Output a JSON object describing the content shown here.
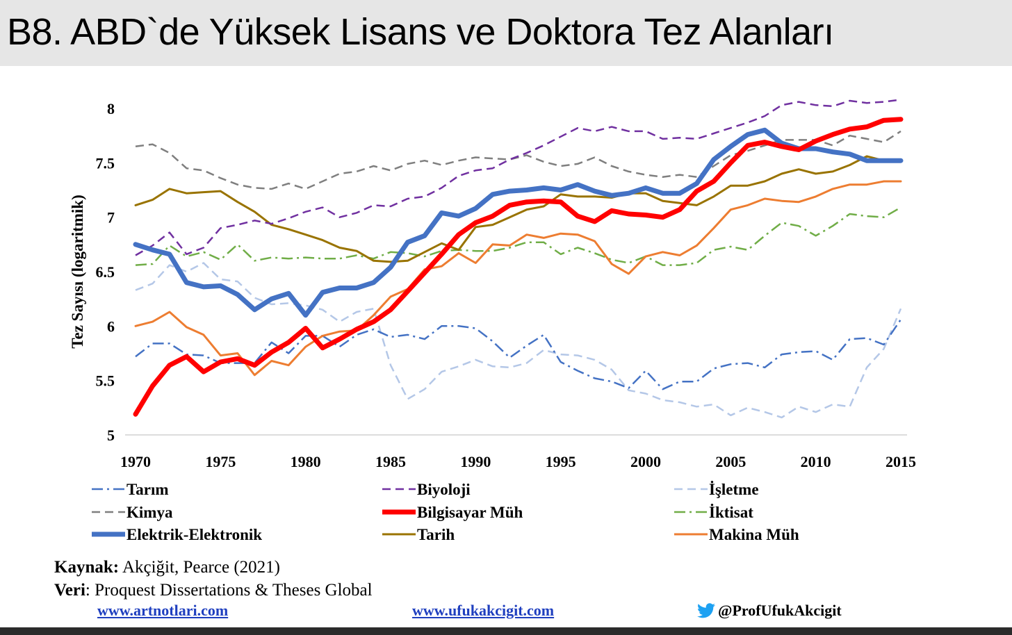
{
  "header": {
    "title": "B8. ABD`de Yüksek Lisans ve Doktora Tez Alanları"
  },
  "footer": {
    "source_label": "Kaynak:",
    "source_text": " Akçiğit, Pearce (2021)",
    "data_label": "Veri",
    "data_text": ": Proquest Dissertations & Theses Global",
    "link1": "www.artnotlari.com",
    "link2": "www.ufukakcigit.com",
    "twitter_handle": "@ProfUfukAkcigit",
    "twitter_icon": "twitter-bird-icon",
    "twitter_color": "#1da1f2"
  },
  "chart_data": {
    "type": "line",
    "ylabel": "Tez Sayısı (logaritmik)",
    "xlim": [
      1970,
      2015
    ],
    "ylim": [
      5,
      8
    ],
    "x_ticks": [
      1970,
      1975,
      1980,
      1985,
      1990,
      1995,
      2000,
      2005,
      2010,
      2015
    ],
    "x_tick_labels": [
      "1970",
      "1975",
      "1980",
      "1985",
      "1990",
      "1995",
      "2000",
      "2005",
      "2010",
      "2015"
    ],
    "y_ticks": [
      5,
      5.5,
      6,
      6.5,
      7,
      7.5,
      8
    ],
    "y_tick_labels": [
      "5",
      "5.5",
      "6",
      "6.5",
      "7",
      "7.5",
      "8"
    ],
    "grid": false,
    "legend": "bottom",
    "x": [
      1970,
      1971,
      1972,
      1973,
      1974,
      1975,
      1976,
      1977,
      1978,
      1979,
      1980,
      1981,
      1982,
      1983,
      1984,
      1985,
      1986,
      1987,
      1988,
      1989,
      1990,
      1991,
      1992,
      1993,
      1994,
      1995,
      1996,
      1997,
      1998,
      1999,
      2000,
      2001,
      2002,
      2003,
      2004,
      2005,
      2006,
      2007,
      2008,
      2009,
      2010,
      2011,
      2012,
      2013,
      2014,
      2015
    ],
    "series": [
      {
        "name": "Tarım",
        "color": "#4472c4",
        "dash": "dashdot",
        "width": 2.5,
        "values": [
          5.72,
          5.84,
          5.84,
          5.74,
          5.73,
          5.66,
          5.66,
          5.66,
          5.85,
          5.75,
          5.91,
          5.91,
          5.81,
          5.92,
          5.97,
          5.9,
          5.92,
          5.88,
          6.0,
          6.0,
          5.98,
          5.86,
          5.71,
          5.82,
          5.92,
          5.67,
          5.59,
          5.52,
          5.49,
          5.43,
          5.59,
          5.42,
          5.49,
          5.49,
          5.61,
          5.65,
          5.66,
          5.62,
          5.74,
          5.76,
          5.77,
          5.69,
          5.88,
          5.89,
          5.83,
          6.06
        ]
      },
      {
        "name": "Biyoloji",
        "color": "#7030a0",
        "dash": "dash",
        "width": 2.5,
        "values": [
          6.65,
          6.74,
          6.86,
          6.66,
          6.72,
          6.9,
          6.93,
          6.97,
          6.94,
          6.99,
          7.05,
          7.09,
          7.0,
          7.04,
          7.11,
          7.1,
          7.17,
          7.19,
          7.27,
          7.38,
          7.43,
          7.45,
          7.53,
          7.59,
          7.66,
          7.74,
          7.82,
          7.79,
          7.83,
          7.79,
          7.79,
          7.72,
          7.73,
          7.72,
          7.77,
          7.82,
          7.87,
          7.93,
          8.03,
          8.06,
          8.03,
          8.02,
          8.07,
          8.05,
          8.06,
          8.08
        ]
      },
      {
        "name": "İşletme",
        "color": "#b4c7e7",
        "dash": "dash",
        "width": 2.5,
        "values": [
          6.33,
          6.39,
          6.56,
          6.5,
          6.58,
          6.43,
          6.41,
          6.26,
          6.2,
          6.21,
          6.19,
          6.15,
          6.04,
          6.13,
          6.16,
          5.64,
          5.33,
          5.42,
          5.58,
          5.63,
          5.69,
          5.63,
          5.62,
          5.66,
          5.78,
          5.74,
          5.73,
          5.69,
          5.6,
          5.41,
          5.38,
          5.32,
          5.3,
          5.26,
          5.28,
          5.18,
          5.25,
          5.21,
          5.16,
          5.26,
          5.21,
          5.28,
          5.26,
          5.62,
          5.79,
          6.16
        ]
      },
      {
        "name": "Kimya",
        "color": "#7f7f7f",
        "dash": "dash",
        "width": 2.5,
        "values": [
          7.65,
          7.67,
          7.59,
          7.45,
          7.43,
          7.36,
          7.3,
          7.27,
          7.26,
          7.31,
          7.26,
          7.33,
          7.4,
          7.42,
          7.47,
          7.43,
          7.49,
          7.52,
          7.48,
          7.52,
          7.55,
          7.54,
          7.53,
          7.57,
          7.51,
          7.47,
          7.49,
          7.55,
          7.47,
          7.42,
          7.39,
          7.37,
          7.39,
          7.37,
          7.47,
          7.57,
          7.61,
          7.66,
          7.71,
          7.71,
          7.71,
          7.66,
          7.75,
          7.72,
          7.69,
          7.79
        ]
      },
      {
        "name": "Bilgisayar Müh",
        "color": "#ff0000",
        "dash": "solid",
        "width": 7,
        "values": [
          5.19,
          5.45,
          5.64,
          5.72,
          5.58,
          5.67,
          5.7,
          5.64,
          5.76,
          5.85,
          5.98,
          5.8,
          5.88,
          5.97,
          6.04,
          6.15,
          6.32,
          6.49,
          6.66,
          6.84,
          6.95,
          7.01,
          7.11,
          7.14,
          7.15,
          7.14,
          7.01,
          6.96,
          7.06,
          7.03,
          7.02,
          7.0,
          7.07,
          7.24,
          7.33,
          7.5,
          7.66,
          7.69,
          7.65,
          7.62,
          7.7,
          7.76,
          7.81,
          7.83,
          7.89,
          7.9
        ]
      },
      {
        "name": "İktisat",
        "color": "#70ad47",
        "dash": "dashdot",
        "width": 2.5,
        "values": [
          6.56,
          6.57,
          6.74,
          6.64,
          6.68,
          6.61,
          6.75,
          6.6,
          6.63,
          6.62,
          6.63,
          6.62,
          6.62,
          6.65,
          6.62,
          6.68,
          6.67,
          6.64,
          6.69,
          6.7,
          6.69,
          6.69,
          6.72,
          6.77,
          6.77,
          6.66,
          6.72,
          6.67,
          6.61,
          6.58,
          6.64,
          6.56,
          6.56,
          6.58,
          6.7,
          6.73,
          6.7,
          6.83,
          6.95,
          6.92,
          6.83,
          6.92,
          7.03,
          7.01,
          7.0,
          7.09
        ]
      },
      {
        "name": "Elektrik-Elektronik",
        "color": "#4472c4",
        "dash": "solid",
        "width": 7,
        "values": [
          6.75,
          6.7,
          6.66,
          6.4,
          6.36,
          6.37,
          6.29,
          6.15,
          6.25,
          6.3,
          6.1,
          6.31,
          6.35,
          6.35,
          6.4,
          6.54,
          6.77,
          6.83,
          7.04,
          7.01,
          7.08,
          7.21,
          7.24,
          7.25,
          7.27,
          7.25,
          7.3,
          7.24,
          7.2,
          7.22,
          7.27,
          7.22,
          7.22,
          7.31,
          7.53,
          7.65,
          7.76,
          7.8,
          7.68,
          7.63,
          7.63,
          7.6,
          7.58,
          7.52,
          7.52,
          7.52
        ]
      },
      {
        "name": "Tarih",
        "color": "#997300",
        "dash": "solid",
        "width": 3,
        "values": [
          7.11,
          7.16,
          7.26,
          7.22,
          7.23,
          7.24,
          7.14,
          7.05,
          6.93,
          6.89,
          6.84,
          6.79,
          6.72,
          6.69,
          6.6,
          6.59,
          6.6,
          6.68,
          6.76,
          6.7,
          6.91,
          6.93,
          7.0,
          7.07,
          7.1,
          7.21,
          7.19,
          7.19,
          7.18,
          7.22,
          7.22,
          7.15,
          7.13,
          7.11,
          7.19,
          7.29,
          7.29,
          7.33,
          7.4,
          7.44,
          7.4,
          7.42,
          7.48,
          7.56,
          7.52,
          7.51
        ]
      },
      {
        "name": "Makina Müh",
        "color": "#ed7d31",
        "dash": "solid",
        "width": 3,
        "values": [
          6.0,
          6.04,
          6.13,
          5.99,
          5.92,
          5.73,
          5.75,
          5.55,
          5.68,
          5.64,
          5.81,
          5.91,
          5.95,
          5.96,
          6.1,
          6.27,
          6.34,
          6.52,
          6.55,
          6.67,
          6.58,
          6.75,
          6.74,
          6.84,
          6.81,
          6.85,
          6.84,
          6.78,
          6.57,
          6.48,
          6.64,
          6.68,
          6.65,
          6.74,
          6.9,
          7.07,
          7.11,
          7.17,
          7.15,
          7.14,
          7.19,
          7.26,
          7.3,
          7.3,
          7.33,
          7.33
        ]
      }
    ]
  }
}
